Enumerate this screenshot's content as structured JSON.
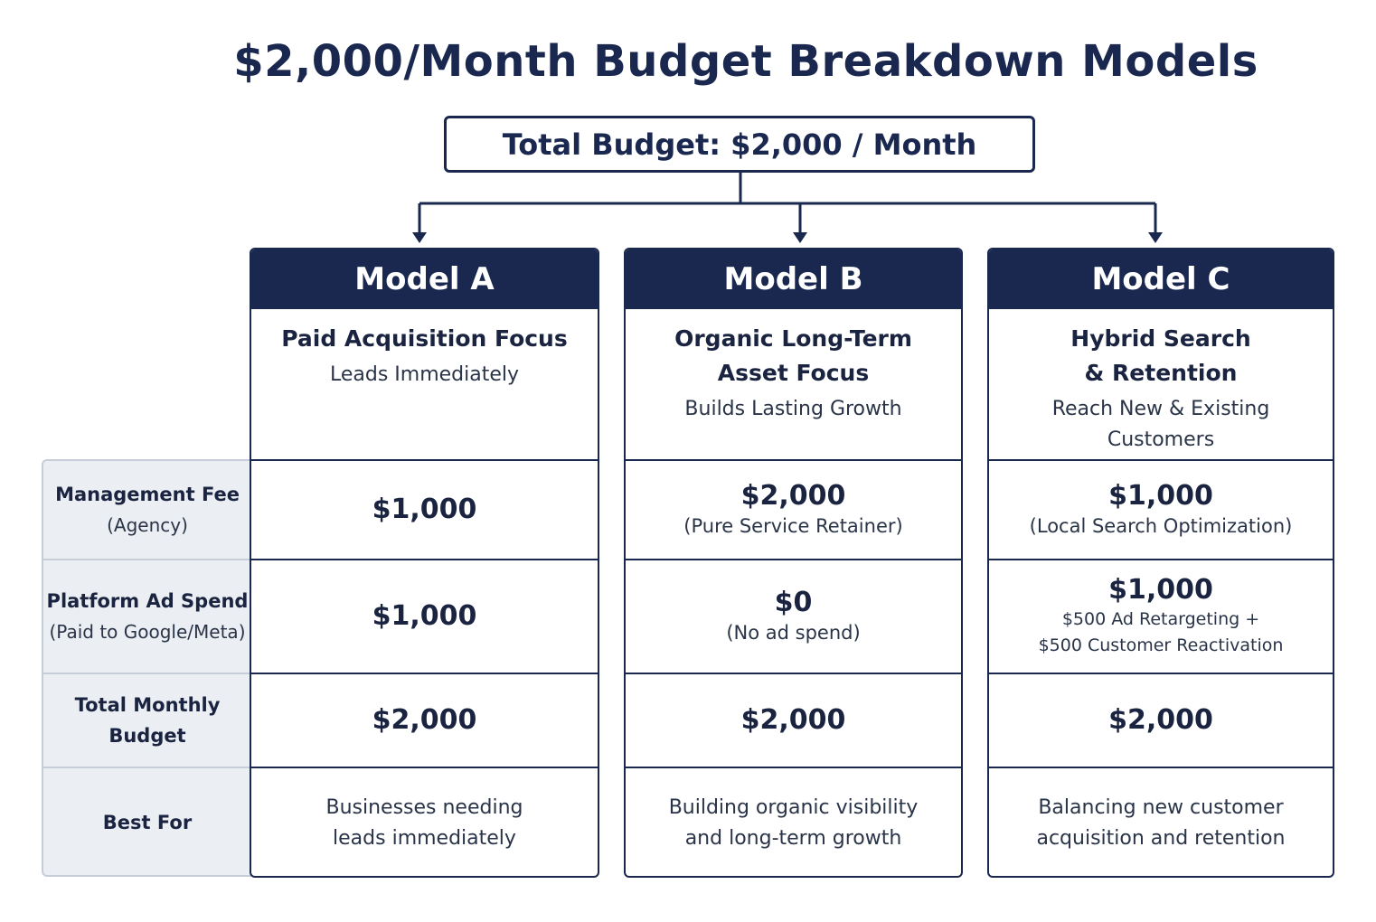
{
  "title": "$2,000/Month Budget Breakdown Models",
  "total_budget": "Total Budget: $2,000 / Month",
  "row_labels": [
    {
      "main": "Management Fee",
      "sub": "(Agency)"
    },
    {
      "main": "Platform Ad Spend",
      "sub": "(Paid to Google/Meta)"
    },
    {
      "main": "Total Monthly",
      "sub": "Budget"
    },
    {
      "main": "Best For",
      "sub": ""
    }
  ],
  "models": [
    {
      "name": "Model A",
      "focus_lines": [
        "Paid Acquisition Focus"
      ],
      "tagline_lines": [
        "Leads Immediately"
      ],
      "management_fee": "$1,000",
      "management_note": "",
      "ad_spend": "$1,000",
      "ad_note_lines": [],
      "total": "$2,000",
      "best_for_lines": [
        "Businesses needing",
        "leads immediately"
      ]
    },
    {
      "name": "Model B",
      "focus_lines": [
        "Organic Long-Term",
        "Asset Focus"
      ],
      "tagline_lines": [
        "Builds Lasting Growth"
      ],
      "management_fee": "$2,000",
      "management_note": "(Pure Service Retainer)",
      "ad_spend": "$0",
      "ad_note_lines": [
        "(No ad spend)"
      ],
      "total": "$2,000",
      "best_for_lines": [
        "Building organic visibility",
        "and long-term growth"
      ]
    },
    {
      "name": "Model C",
      "focus_lines": [
        "Hybrid Search",
        "& Retention"
      ],
      "tagline_lines": [
        "Reach New & Existing",
        "Customers"
      ],
      "management_fee": "$1,000",
      "management_note": "(Local Search Optimization)",
      "ad_spend": "$1,000",
      "ad_note_lines": [
        "$500 Ad Retargeting +",
        "$500 Customer Reactivation"
      ],
      "total": "$2,000",
      "best_for_lines": [
        "Balancing new customer",
        "acquisition and retention"
      ]
    }
  ]
}
